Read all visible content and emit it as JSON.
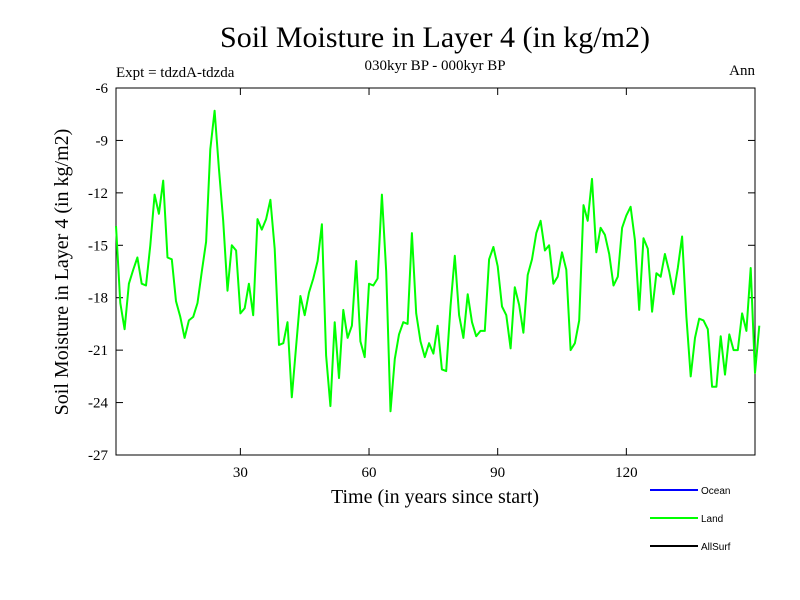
{
  "chart_data": {
    "type": "line",
    "title": "Soil Moisture in Layer 4 (in kg/m2)",
    "subtitle": "030kyr BP - 000kyr BP",
    "experiment_label": "Expt = tdzdA-tdzda",
    "season_label": "Ann",
    "xlabel": "Time (in years since start)",
    "ylabel": "Soil Moisture in Layer 4 (in kg/m2)",
    "xlim": [
      1,
      150
    ],
    "ylim": [
      -27,
      -6
    ],
    "x_ticks": [
      30,
      60,
      90,
      120
    ],
    "y_ticks": [
      -6,
      -9,
      -12,
      -15,
      -18,
      -21,
      -24,
      -27
    ],
    "x_tick_labels": [
      "30",
      "60",
      "90",
      "120"
    ],
    "y_tick_labels": [
      "-6",
      "-9",
      "-12",
      "-15",
      "-18",
      "-21",
      "-24",
      "-27"
    ],
    "legend": [
      {
        "name": "Ocean",
        "color": "#0000ff"
      },
      {
        "name": "Land",
        "color": "#00ff00"
      },
      {
        "name": "AllSurf",
        "color": "#000000"
      }
    ],
    "series": [
      {
        "name": "Land",
        "color": "#00ff00",
        "x_start": 1,
        "x_step": 1,
        "values": [
          -13.9,
          -18.3,
          -19.8,
          -17.2,
          -16.4,
          -15.7,
          -17.2,
          -17.3,
          -15.0,
          -12.1,
          -13.2,
          -11.3,
          -15.7,
          -15.8,
          -18.2,
          -19.1,
          -20.3,
          -19.3,
          -19.1,
          -18.3,
          -16.5,
          -14.8,
          -9.5,
          -7.3,
          -10.6,
          -13.6,
          -17.6,
          -15.0,
          -15.3,
          -18.9,
          -18.6,
          -17.2,
          -19.0,
          -13.5,
          -14.1,
          -13.5,
          -12.4,
          -15.2,
          -20.7,
          -20.6,
          -19.4,
          -23.7,
          -20.8,
          -17.9,
          -19.0,
          -17.7,
          -16.9,
          -15.9,
          -13.8,
          -21.3,
          -24.2,
          -19.4,
          -22.6,
          -18.7,
          -20.3,
          -19.6,
          -15.9,
          -20.5,
          -21.4,
          -17.2,
          -17.3,
          -16.9,
          -12.1,
          -16.5,
          -24.5,
          -21.5,
          -20.1,
          -19.4,
          -19.5,
          -14.3,
          -18.9,
          -20.5,
          -21.4,
          -20.6,
          -21.2,
          -19.6,
          -22.1,
          -22.2,
          -18.5,
          -15.6,
          -19.0,
          -20.3,
          -17.8,
          -19.4,
          -20.2,
          -19.9,
          -19.9,
          -15.8,
          -15.1,
          -16.2,
          -18.5,
          -19.0,
          -20.9,
          -17.4,
          -18.4,
          -20.0,
          -16.7,
          -15.8,
          -14.3,
          -13.6,
          -15.3,
          -15.0,
          -17.2,
          -16.8,
          -15.4,
          -16.4,
          -21.0,
          -20.6,
          -19.3,
          -12.7,
          -13.6,
          -11.2,
          -15.4,
          -14.0,
          -14.4,
          -15.5,
          -17.3,
          -16.8,
          -14.0,
          -13.3,
          -12.8,
          -14.7,
          -18.7,
          -14.6,
          -15.2,
          -18.8,
          -16.6,
          -16.8,
          -15.5,
          -16.5,
          -17.8,
          -16.3,
          -14.5,
          -19.1,
          -22.5,
          -20.3,
          -19.2,
          -19.3,
          -19.8,
          -23.1,
          -23.1,
          -20.2,
          -22.4,
          -20.1,
          -21.0,
          -21.0,
          -18.9,
          -19.9,
          -16.3,
          -22.3,
          -19.6
        ]
      }
    ]
  }
}
